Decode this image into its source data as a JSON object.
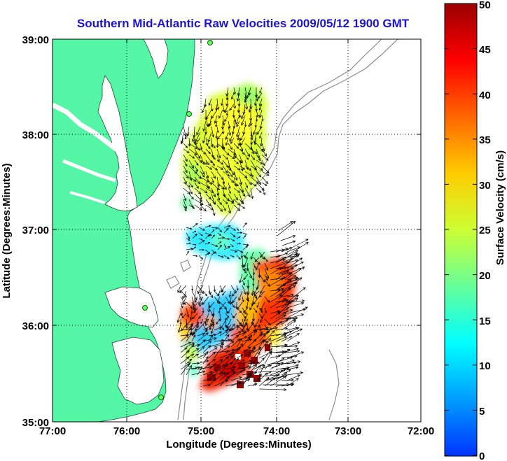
{
  "title": "Southern Mid-Atlantic Raw Velocities 2009/05/12 1900 GMT",
  "xlabel": "Longitude (Degrees:Minutes)",
  "ylabel": "Latitude (Degrees:Minutes)",
  "x_ticks": [
    "77:00",
    "76:00",
    "75:00",
    "74:00",
    "73:00",
    "72:00"
  ],
  "y_ticks": [
    "39:00",
    "38:00",
    "37:00",
    "36:00",
    "35:00"
  ],
  "colorbar": {
    "label": "Surface Velocity (cm/s)",
    "ticks": [
      "0",
      "5",
      "10",
      "15",
      "20",
      "25",
      "30",
      "35",
      "40",
      "45",
      "50"
    ],
    "range": [
      0,
      50
    ],
    "colormap": "jet"
  },
  "colors": {
    "land": "#55f5a6",
    "title": "#1a12d6",
    "isobath": "#8c8c8c"
  },
  "map_extent": {
    "lon": [
      -77,
      -72
    ],
    "lat": [
      35,
      39
    ]
  }
}
